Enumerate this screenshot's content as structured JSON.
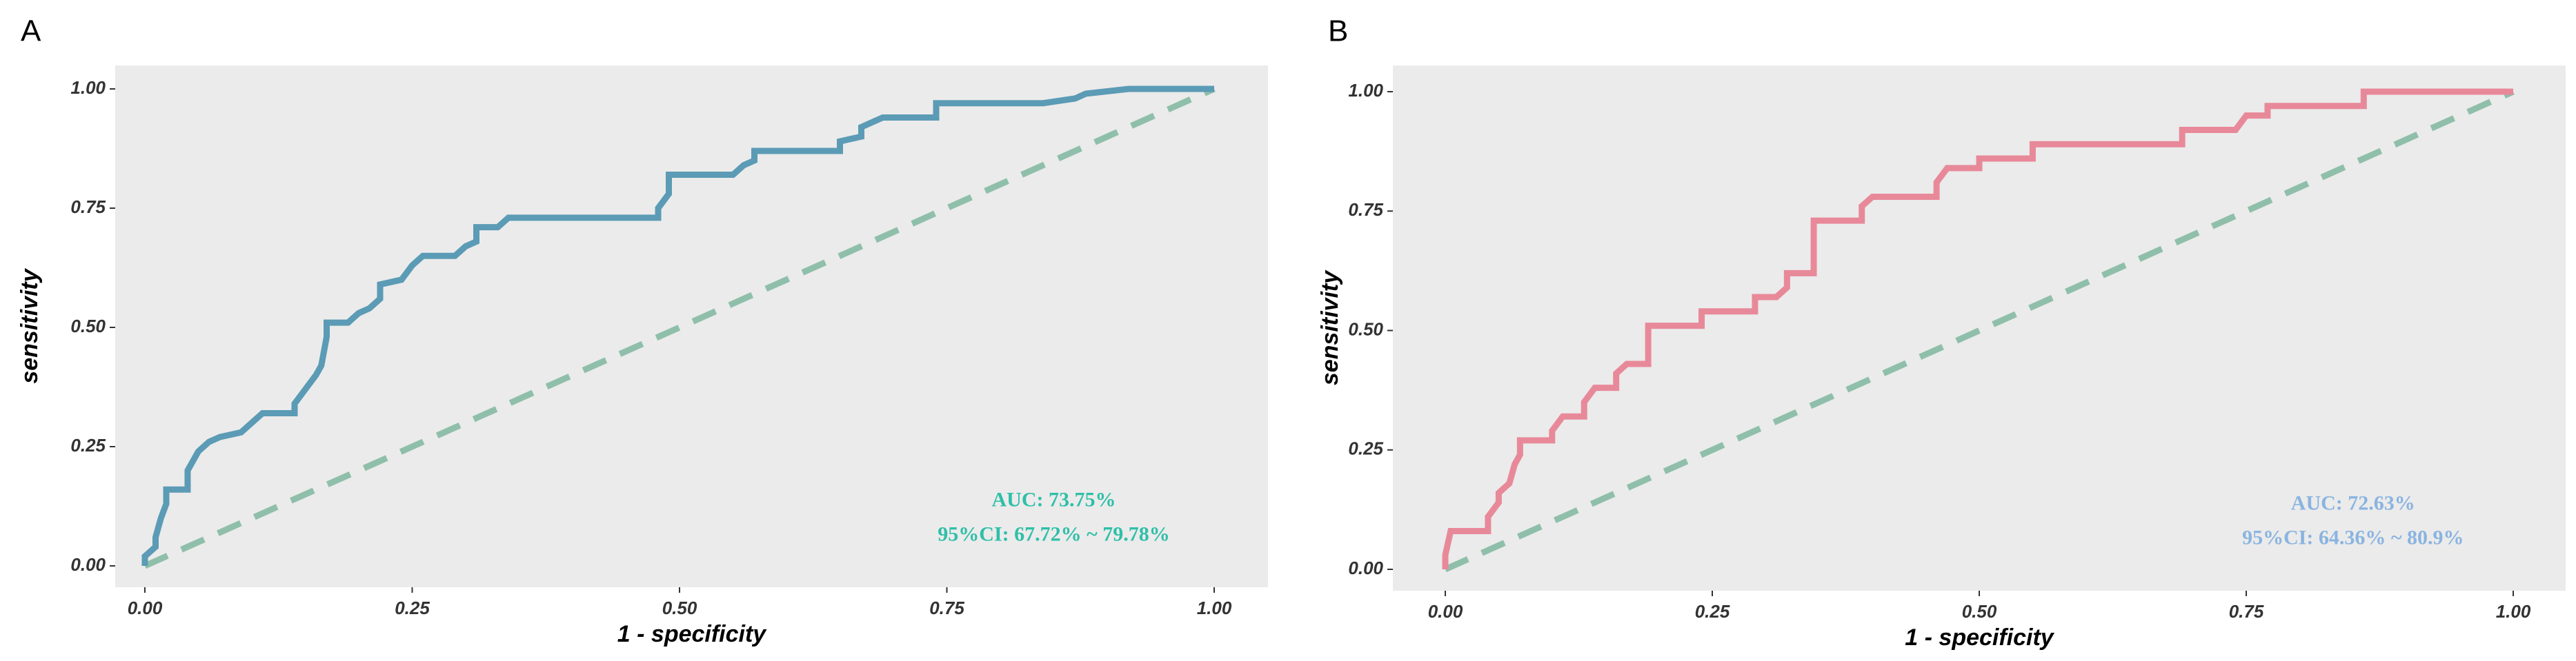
{
  "chart_data": [
    {
      "type": "line",
      "panel_label": "A",
      "x_label": "1 - specificity",
      "y_label": "sensitivity",
      "annotations": [
        "AUC: 73.75%",
        "95%CI: 67.72% ~ 79.78%"
      ],
      "annotation_color": "#2fbfa8",
      "xlim": [
        0,
        1
      ],
      "ylim": [
        0,
        1
      ],
      "xticks": [
        {
          "value": 0,
          "label": "0.00"
        },
        {
          "value": 0.25,
          "label": "0.25"
        },
        {
          "value": 0.5,
          "label": "0.50"
        },
        {
          "value": 0.75,
          "label": "0.75"
        },
        {
          "value": 1,
          "label": "1.00"
        }
      ],
      "yticks": [
        {
          "value": 0,
          "label": "0.00"
        },
        {
          "value": 0.25,
          "label": "0.25"
        },
        {
          "value": 0.5,
          "label": "0.50"
        },
        {
          "value": 0.75,
          "label": "0.75"
        },
        {
          "value": 1,
          "label": "1.00"
        }
      ],
      "reference_color": "#8fbfaa",
      "series": [
        {
          "color": "#5b9bb5",
          "x": [
            0,
            0,
            0.01,
            0.01,
            0.015,
            0.02,
            0.02,
            0.04,
            0.04,
            0.05,
            0.06,
            0.07,
            0.09,
            0.1,
            0.11,
            0.14,
            0.14,
            0.15,
            0.16,
            0.165,
            0.17,
            0.17,
            0.19,
            0.2,
            0.21,
            0.22,
            0.22,
            0.24,
            0.25,
            0.26,
            0.29,
            0.3,
            0.31,
            0.31,
            0.33,
            0.34,
            0.48,
            0.48,
            0.49,
            0.49,
            0.55,
            0.56,
            0.57,
            0.57,
            0.65,
            0.65,
            0.67,
            0.67,
            0.69,
            0.74,
            0.74,
            0.84,
            0.87,
            0.88,
            0.92,
            1
          ],
          "values": [
            0,
            0.02,
            0.04,
            0.06,
            0.1,
            0.13,
            0.16,
            0.16,
            0.2,
            0.24,
            0.26,
            0.27,
            0.28,
            0.3,
            0.32,
            0.32,
            0.34,
            0.37,
            0.4,
            0.42,
            0.48,
            0.51,
            0.51,
            0.53,
            0.54,
            0.56,
            0.59,
            0.6,
            0.63,
            0.65,
            0.65,
            0.67,
            0.68,
            0.71,
            0.71,
            0.73,
            0.73,
            0.75,
            0.78,
            0.82,
            0.82,
            0.84,
            0.85,
            0.87,
            0.87,
            0.89,
            0.9,
            0.92,
            0.94,
            0.94,
            0.97,
            0.97,
            0.98,
            0.99,
            1,
            1
          ]
        }
      ]
    },
    {
      "type": "line",
      "panel_label": "B",
      "x_label": "1 - specificity",
      "y_label": "sensitivity",
      "annotations": [
        "AUC: 72.63%",
        "95%CI: 64.36% ~ 80.9%"
      ],
      "annotation_color": "#8ab4e0",
      "xlim": [
        0,
        1
      ],
      "ylim": [
        0,
        1
      ],
      "xticks": [
        {
          "value": 0,
          "label": "0.00"
        },
        {
          "value": 0.25,
          "label": "0.25"
        },
        {
          "value": 0.5,
          "label": "0.50"
        },
        {
          "value": 0.75,
          "label": "0.75"
        },
        {
          "value": 1,
          "label": "1.00"
        }
      ],
      "yticks": [
        {
          "value": 0,
          "label": "0.00"
        },
        {
          "value": 0.25,
          "label": "0.25"
        },
        {
          "value": 0.5,
          "label": "0.50"
        },
        {
          "value": 0.75,
          "label": "0.75"
        },
        {
          "value": 1,
          "label": "1.00"
        }
      ],
      "reference_color": "#8fbfaa",
      "series": [
        {
          "color": "#e8899a",
          "x": [
            0,
            0,
            0.005,
            0.04,
            0.04,
            0.05,
            0.05,
            0.06,
            0.065,
            0.07,
            0.07,
            0.1,
            0.1,
            0.11,
            0.13,
            0.13,
            0.14,
            0.16,
            0.16,
            0.17,
            0.19,
            0.19,
            0.24,
            0.24,
            0.29,
            0.29,
            0.31,
            0.32,
            0.32,
            0.345,
            0.345,
            0.39,
            0.39,
            0.4,
            0.46,
            0.46,
            0.47,
            0.5,
            0.5,
            0.55,
            0.55,
            0.69,
            0.69,
            0.74,
            0.75,
            0.77,
            0.77,
            0.86,
            0.86,
            1
          ],
          "values": [
            0,
            0.03,
            0.08,
            0.08,
            0.11,
            0.14,
            0.16,
            0.18,
            0.22,
            0.24,
            0.27,
            0.27,
            0.29,
            0.32,
            0.32,
            0.35,
            0.38,
            0.38,
            0.41,
            0.43,
            0.43,
            0.51,
            0.51,
            0.54,
            0.54,
            0.57,
            0.57,
            0.59,
            0.62,
            0.62,
            0.73,
            0.73,
            0.76,
            0.78,
            0.78,
            0.81,
            0.84,
            0.84,
            0.86,
            0.86,
            0.89,
            0.89,
            0.92,
            0.92,
            0.95,
            0.95,
            0.97,
            0.97,
            1,
            1
          ]
        }
      ]
    }
  ]
}
